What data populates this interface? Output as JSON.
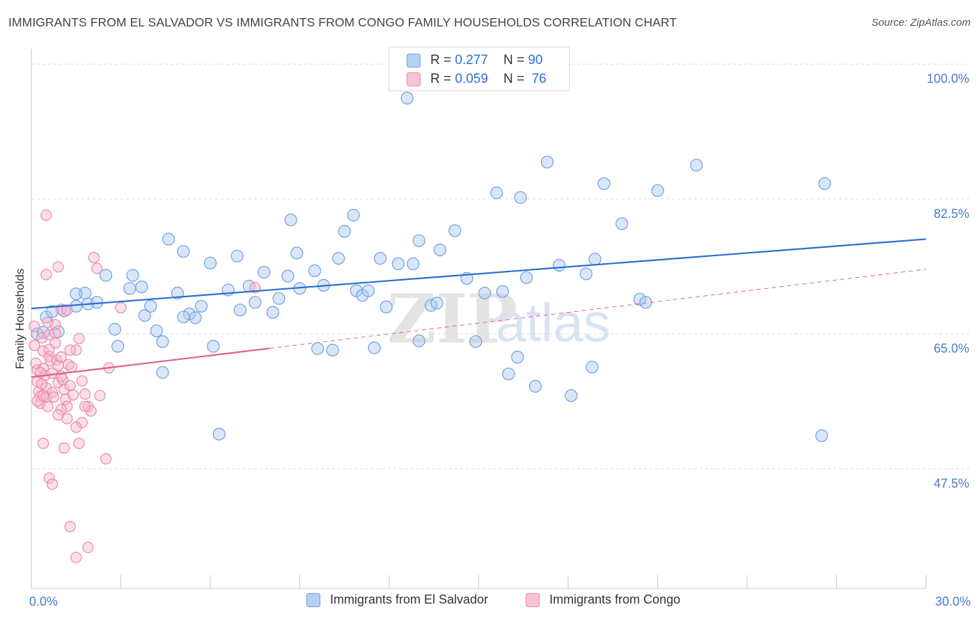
{
  "title": "IMMIGRANTS FROM EL SALVADOR VS IMMIGRANTS FROM CONGO FAMILY HOUSEHOLDS CORRELATION CHART",
  "source": "Source: ZipAtlas.com",
  "watermark": {
    "zip": "ZIP",
    "atlas": "atlas"
  },
  "legend": [
    {
      "r_label": "R =",
      "r_value": "0.277",
      "n_label": "N =",
      "n_value": "90"
    },
    {
      "r_label": "R =",
      "r_value": "0.059",
      "n_label": "N =",
      "n_value": "76"
    }
  ],
  "bottom_legend": [
    "Immigrants from El Salvador",
    "Immigrants from Congo"
  ],
  "colors": {
    "blue_fill": "#a9c8f0",
    "blue_stroke": "#6f9fe0",
    "blue_line": "#2a6fd0",
    "pink_fill": "#f6b7c9",
    "pink_stroke": "#e889a8",
    "pink_line": "#e0608c",
    "grid": "#dcdcdc",
    "tick_label": "#4a7cc9"
  },
  "chart_data": {
    "type": "scatter",
    "ylabel": "Family Households",
    "xlabel": "",
    "xlim": [
      0,
      30
    ],
    "ylim": [
      32,
      102
    ],
    "y_ticks": [
      {
        "value": 100,
        "label": "100.0%"
      },
      {
        "value": 82.5,
        "label": "82.5%"
      },
      {
        "value": 65,
        "label": "65.0%"
      },
      {
        "value": 47.5,
        "label": "47.5%"
      }
    ],
    "x_tick_labels": [
      {
        "value": 0,
        "label": "0.0%"
      },
      {
        "value": 30,
        "label": "30.0%"
      }
    ],
    "x_minor_ticks": [
      0,
      3,
      6,
      9,
      12,
      15,
      18,
      21,
      24,
      27,
      30
    ],
    "grid": true,
    "series": [
      {
        "name": "Immigrants from El Salvador",
        "trend": {
          "x0": 0,
          "y0": 68.3,
          "x1": 30,
          "y1": 77.3,
          "dashed_from": null
        },
        "points": [
          [
            0.2,
            65.0
          ],
          [
            0.5,
            67.2
          ],
          [
            0.7,
            67.9
          ],
          [
            0.9,
            65.3
          ],
          [
            1.1,
            68.0
          ],
          [
            1.5,
            68.6
          ],
          [
            1.9,
            68.9
          ],
          [
            2.2,
            69.1
          ],
          [
            1.8,
            70.3
          ],
          [
            1.5,
            70.2
          ],
          [
            2.5,
            72.6
          ],
          [
            2.8,
            65.6
          ],
          [
            2.9,
            63.4
          ],
          [
            3.3,
            70.9
          ],
          [
            3.4,
            72.6
          ],
          [
            3.7,
            71.1
          ],
          [
            3.8,
            67.4
          ],
          [
            4.0,
            68.6
          ],
          [
            4.2,
            65.4
          ],
          [
            4.4,
            60.0
          ],
          [
            4.6,
            77.3
          ],
          [
            4.9,
            70.3
          ],
          [
            5.1,
            75.7
          ],
          [
            5.3,
            67.6
          ],
          [
            5.5,
            67.1
          ],
          [
            5.7,
            68.6
          ],
          [
            6.0,
            74.2
          ],
          [
            6.1,
            63.4
          ],
          [
            6.3,
            52.0
          ],
          [
            6.6,
            70.7
          ],
          [
            6.9,
            75.1
          ],
          [
            7.0,
            68.1
          ],
          [
            7.3,
            71.2
          ],
          [
            7.5,
            69.1
          ],
          [
            7.8,
            73.0
          ],
          [
            8.1,
            67.8
          ],
          [
            8.3,
            69.6
          ],
          [
            8.6,
            72.5
          ],
          [
            8.7,
            79.8
          ],
          [
            8.9,
            75.5
          ],
          [
            9.0,
            70.9
          ],
          [
            9.5,
            73.2
          ],
          [
            9.6,
            63.1
          ],
          [
            9.8,
            71.3
          ],
          [
            10.1,
            62.9
          ],
          [
            10.3,
            74.8
          ],
          [
            10.5,
            78.3
          ],
          [
            10.8,
            80.4
          ],
          [
            10.9,
            70.6
          ],
          [
            11.1,
            70.0
          ],
          [
            11.3,
            70.6
          ],
          [
            11.5,
            63.2
          ],
          [
            11.7,
            74.8
          ],
          [
            11.9,
            68.5
          ],
          [
            12.3,
            74.1
          ],
          [
            12.6,
            95.6
          ],
          [
            12.8,
            74.1
          ],
          [
            13.0,
            77.1
          ],
          [
            13.0,
            64.1
          ],
          [
            13.4,
            68.7
          ],
          [
            13.7,
            75.9
          ],
          [
            14.2,
            78.4
          ],
          [
            14.6,
            72.2
          ],
          [
            14.9,
            64.0
          ],
          [
            15.2,
            70.3
          ],
          [
            15.6,
            83.3
          ],
          [
            16.0,
            59.8
          ],
          [
            16.3,
            62.0
          ],
          [
            16.6,
            72.3
          ],
          [
            16.9,
            58.2
          ],
          [
            17.3,
            87.3
          ],
          [
            17.7,
            73.9
          ],
          [
            18.1,
            57.0
          ],
          [
            18.6,
            72.8
          ],
          [
            18.8,
            60.7
          ],
          [
            18.9,
            74.7
          ],
          [
            19.2,
            84.5
          ],
          [
            20.4,
            69.5
          ],
          [
            20.6,
            69.1
          ],
          [
            21.0,
            83.6
          ],
          [
            22.3,
            86.9
          ],
          [
            26.5,
            51.8
          ],
          [
            26.6,
            84.5
          ],
          [
            19.8,
            79.3
          ],
          [
            16.4,
            82.7
          ],
          [
            5.1,
            67.2
          ],
          [
            13.6,
            69.0
          ],
          [
            15.8,
            70.5
          ],
          [
            4.4,
            64.0
          ],
          [
            0.4,
            65.2
          ]
        ]
      },
      {
        "name": "Immigrants from Congo",
        "trend": {
          "x0": 0,
          "y0": 59.4,
          "x1": 30,
          "y1": 73.4,
          "dashed_from": 8.0
        },
        "points": [
          [
            0.1,
            66.0
          ],
          [
            0.1,
            63.5
          ],
          [
            0.15,
            61.2
          ],
          [
            0.2,
            60.3
          ],
          [
            0.2,
            58.8
          ],
          [
            0.25,
            57.5
          ],
          [
            0.3,
            56.9
          ],
          [
            0.3,
            56.0
          ],
          [
            0.35,
            64.5
          ],
          [
            0.4,
            62.8
          ],
          [
            0.4,
            60.5
          ],
          [
            0.45,
            59.6
          ],
          [
            0.5,
            58.0
          ],
          [
            0.5,
            56.8
          ],
          [
            0.55,
            55.6
          ],
          [
            0.6,
            64.9
          ],
          [
            0.6,
            62.1
          ],
          [
            0.65,
            61.5
          ],
          [
            0.7,
            59.9
          ],
          [
            0.7,
            57.4
          ],
          [
            0.75,
            56.8
          ],
          [
            0.8,
            66.2
          ],
          [
            0.8,
            63.8
          ],
          [
            0.85,
            61.6
          ],
          [
            0.9,
            60.9
          ],
          [
            0.9,
            58.7
          ],
          [
            1.0,
            68.2
          ],
          [
            1.0,
            62.0
          ],
          [
            1.05,
            59.1
          ],
          [
            1.1,
            57.8
          ],
          [
            1.15,
            56.5
          ],
          [
            1.2,
            55.6
          ],
          [
            1.25,
            61.0
          ],
          [
            1.3,
            58.3
          ],
          [
            1.35,
            60.7
          ],
          [
            1.4,
            57.1
          ],
          [
            1.5,
            62.9
          ],
          [
            1.6,
            64.4
          ],
          [
            1.7,
            53.5
          ],
          [
            1.8,
            57.2
          ],
          [
            1.9,
            55.6
          ],
          [
            2.0,
            55.0
          ],
          [
            2.1,
            74.9
          ],
          [
            2.2,
            73.5
          ],
          [
            2.3,
            57.0
          ],
          [
            2.5,
            48.8
          ],
          [
            0.5,
            80.4
          ],
          [
            0.5,
            72.7
          ],
          [
            0.9,
            73.7
          ],
          [
            1.2,
            68.1
          ],
          [
            0.4,
            50.8
          ],
          [
            1.1,
            50.2
          ],
          [
            0.6,
            46.3
          ],
          [
            0.7,
            45.5
          ],
          [
            1.3,
            40.0
          ],
          [
            1.9,
            37.3
          ],
          [
            1.5,
            36.0
          ],
          [
            1.6,
            50.8
          ],
          [
            1.0,
            55.2
          ],
          [
            1.8,
            55.6
          ],
          [
            2.6,
            60.6
          ],
          [
            3.0,
            68.4
          ],
          [
            0.3,
            60.0
          ],
          [
            0.6,
            63.0
          ],
          [
            0.8,
            65.1
          ],
          [
            1.0,
            59.5
          ],
          [
            1.3,
            62.9
          ],
          [
            0.2,
            56.3
          ],
          [
            1.5,
            52.9
          ],
          [
            0.4,
            57.0
          ],
          [
            0.55,
            66.5
          ],
          [
            7.5,
            71.0
          ],
          [
            0.9,
            54.5
          ],
          [
            1.7,
            58.9
          ],
          [
            1.2,
            54.0
          ],
          [
            0.35,
            58.5
          ]
        ]
      }
    ]
  }
}
